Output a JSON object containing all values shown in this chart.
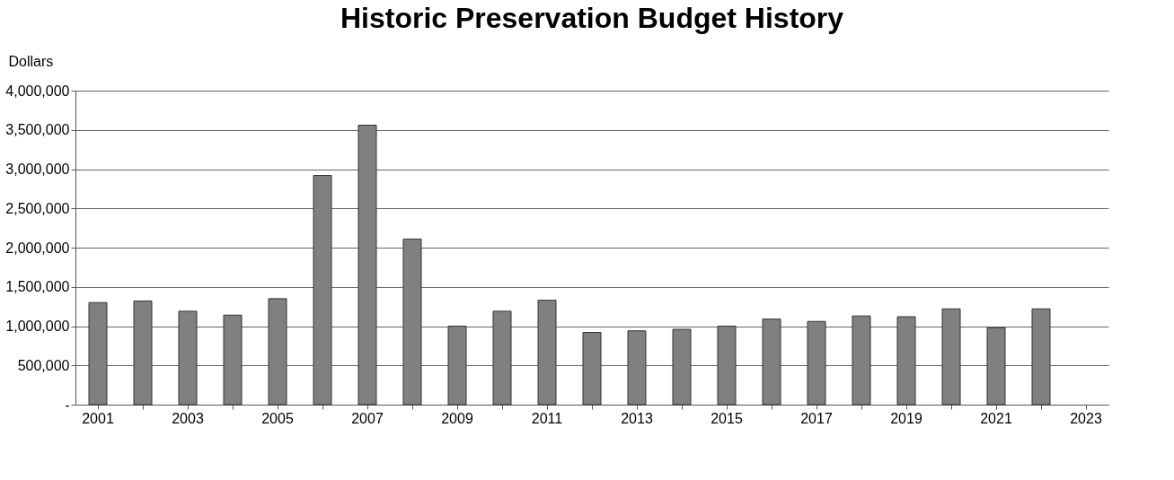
{
  "chart_data": {
    "type": "bar",
    "title": "Historic Preservation Budget History",
    "ylabel": "Dollars",
    "categories": [
      "2001",
      null,
      "2003",
      null,
      "2005",
      null,
      "2007",
      null,
      "2009",
      null,
      "2011",
      null,
      "2013",
      null,
      "2015",
      null,
      "2017",
      null,
      "2019",
      null,
      "2021",
      null,
      "2023"
    ],
    "values": [
      1300000,
      1320000,
      1190000,
      1140000,
      1350000,
      2920000,
      3560000,
      2110000,
      1000000,
      1190000,
      1330000,
      920000,
      940000,
      960000,
      1000000,
      1090000,
      1060000,
      1130000,
      1120000,
      1220000,
      980000,
      1220000,
      null
    ],
    "color": "#808080",
    "ylim": [
      0,
      4000000
    ],
    "yticks": [
      {
        "value": 0,
        "label": "-"
      },
      {
        "value": 500000,
        "label": "500,000"
      },
      {
        "value": 1000000,
        "label": "1,000,000"
      },
      {
        "value": 1500000,
        "label": "1,500,000"
      },
      {
        "value": 2000000,
        "label": "2,000,000"
      },
      {
        "value": 2500000,
        "label": "2,500,000"
      },
      {
        "value": 3000000,
        "label": "3,000,000"
      },
      {
        "value": 3500000,
        "label": "3,500,000"
      },
      {
        "value": 4000000,
        "label": "4,000,000"
      }
    ],
    "grid": "y"
  }
}
